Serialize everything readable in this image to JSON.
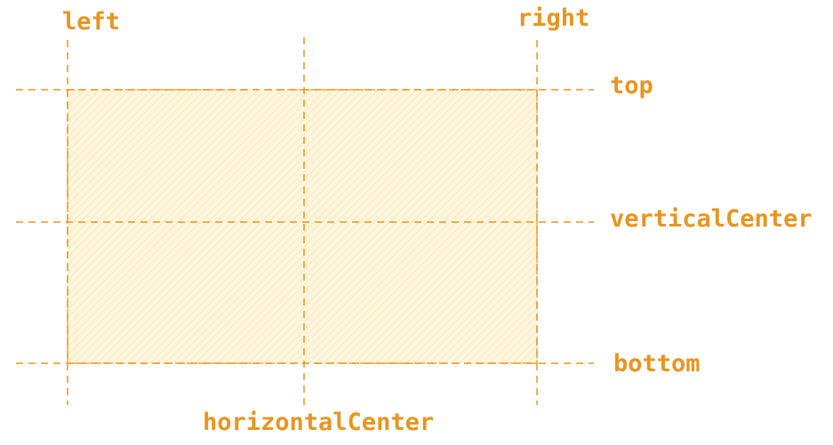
{
  "colors": {
    "accent": "#e8951f",
    "fill": "#fdf6dd",
    "hatch": "#f6e9bf"
  },
  "anchors": {
    "left": "left",
    "right": "right",
    "top": "top",
    "vertical_center": "verticalCenter",
    "bottom": "bottom",
    "horizontal_center": "horizontalCenter"
  }
}
